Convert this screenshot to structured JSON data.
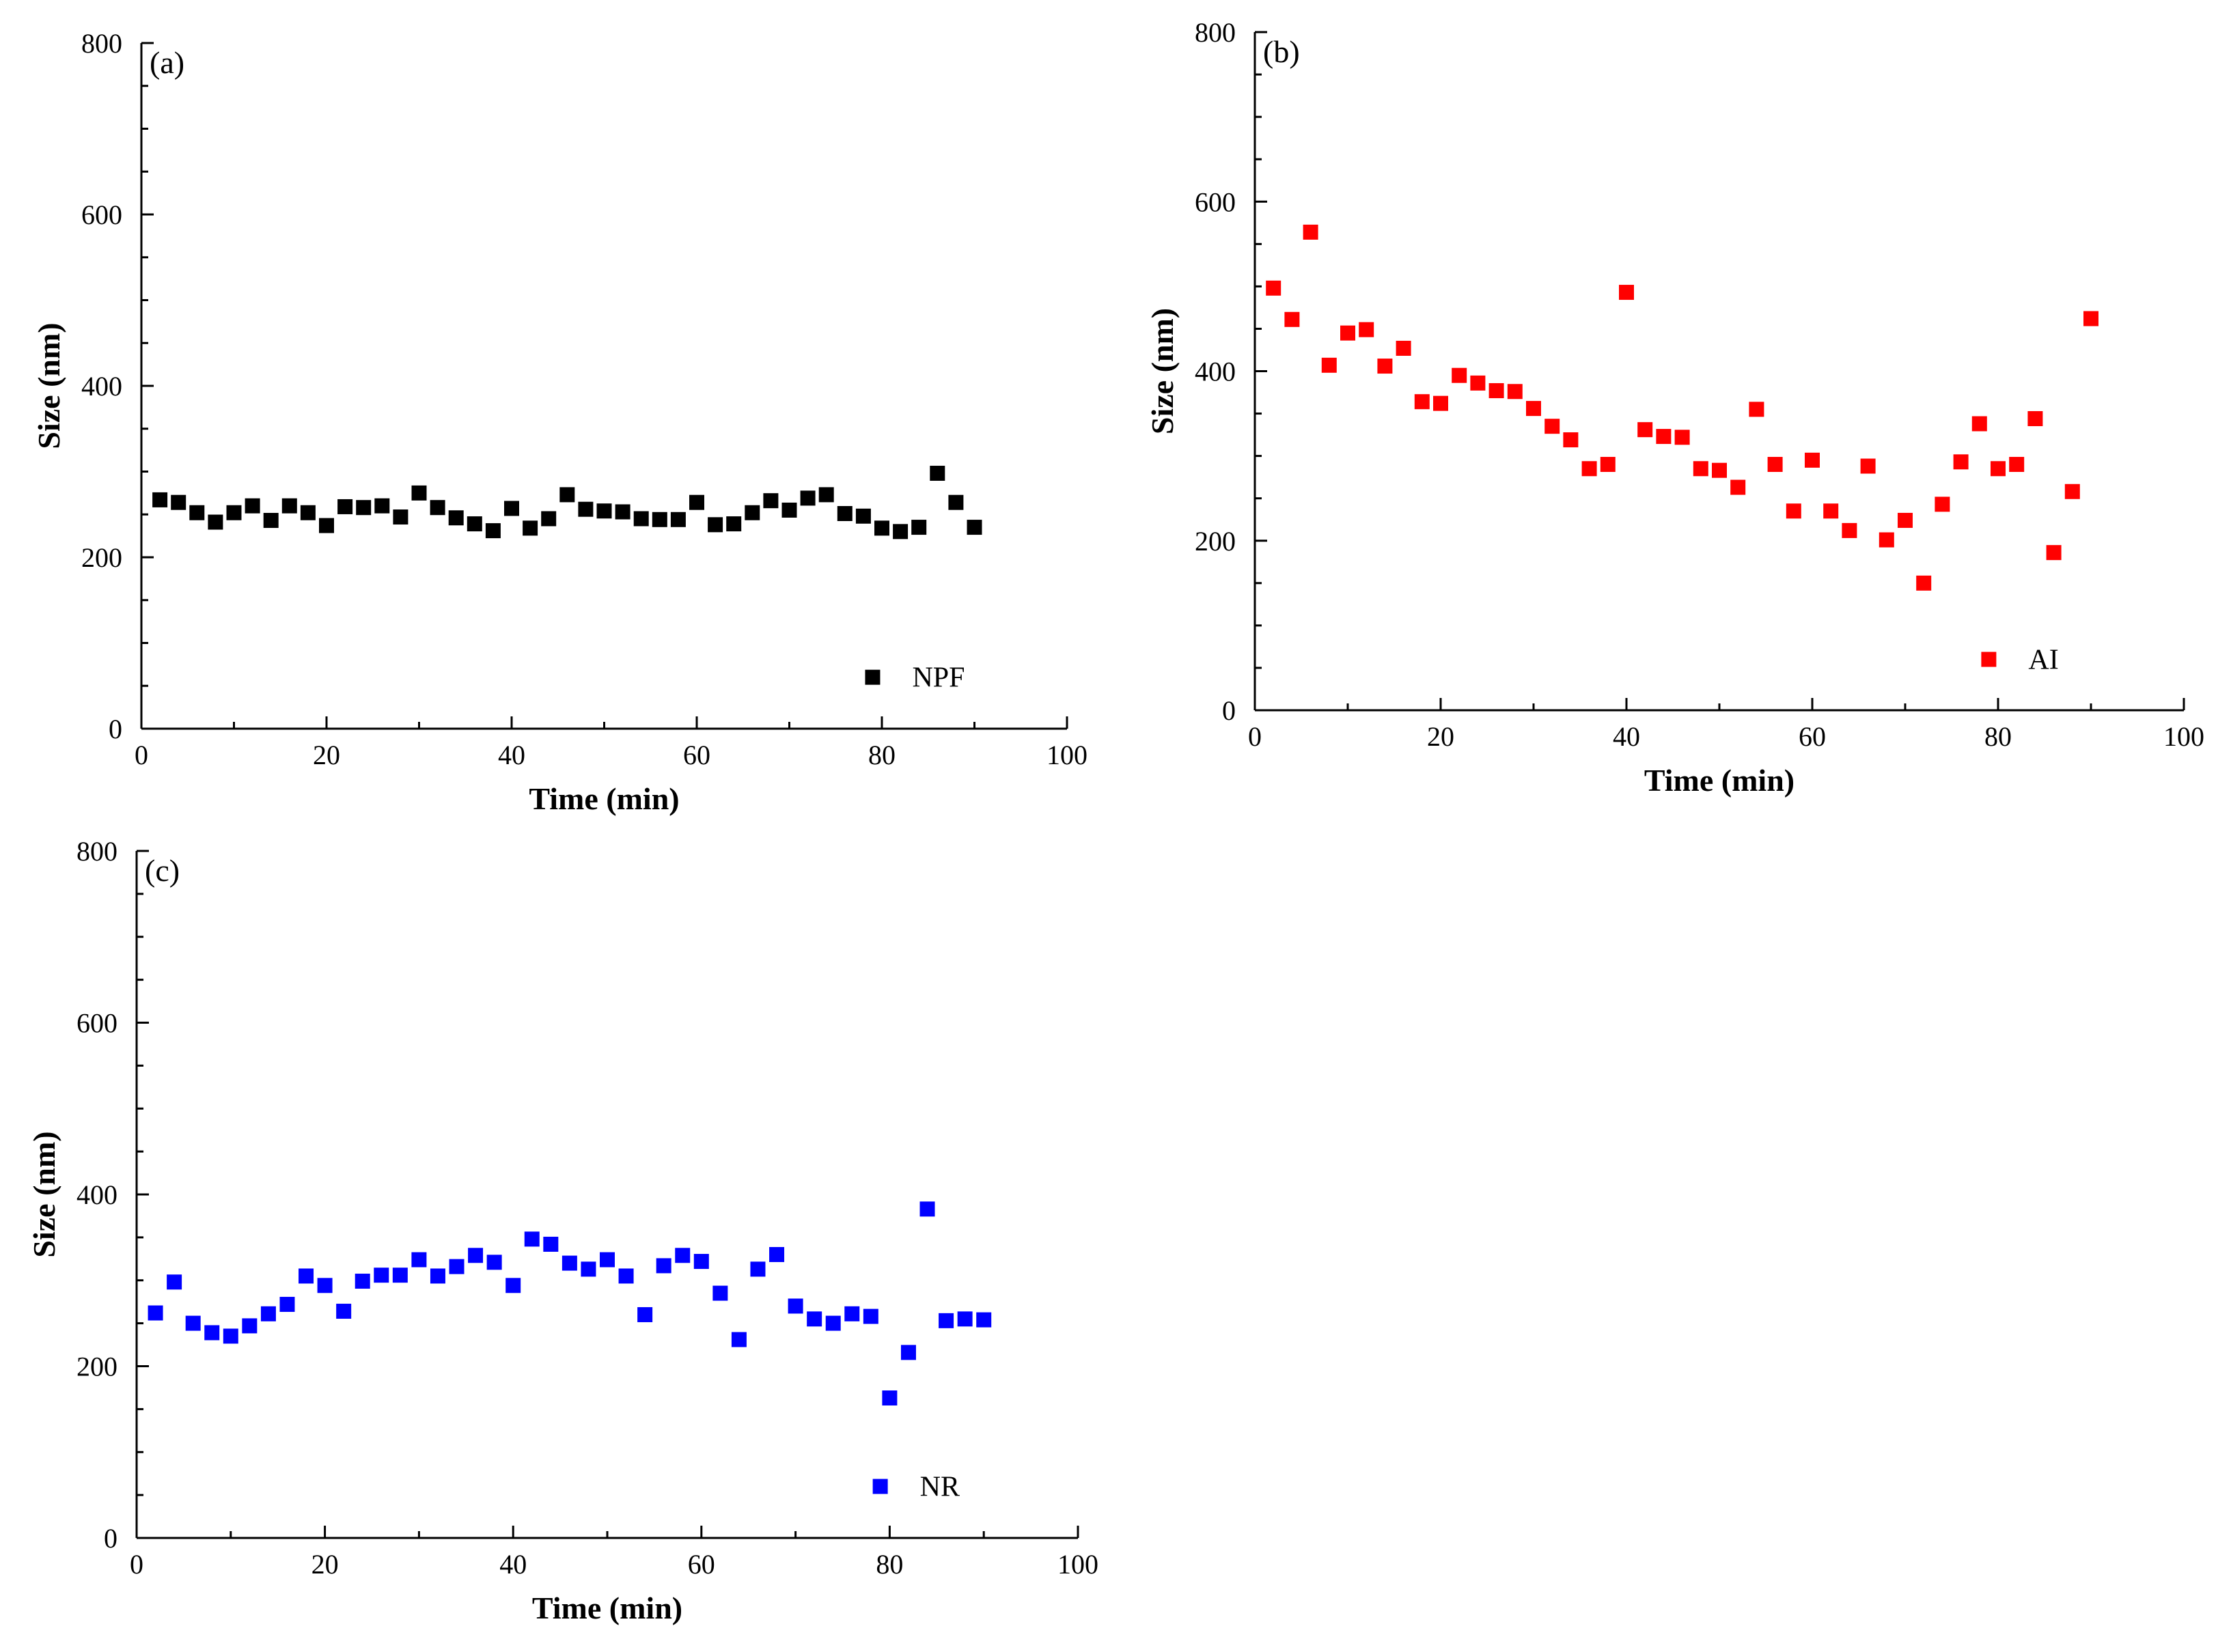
{
  "colors": {
    "NPF": "#000000",
    "AI": "#ff0000",
    "NR": "#0000ff"
  },
  "chart_data": [
    {
      "type": "scatter",
      "panel_label": "(a)",
      "xlabel": "Time (min)",
      "ylabel": "Size (nm)",
      "xlim": [
        0,
        100
      ],
      "ylim": [
        0,
        800
      ],
      "xticks": [
        "0",
        "20",
        "40",
        "60",
        "80",
        "100"
      ],
      "yticks": [
        "0",
        "200",
        "400",
        "600",
        "800"
      ],
      "legend": "bottom-right",
      "series": [
        {
          "name": "NPF",
          "x": [
            2,
            4,
            6,
            8,
            10,
            12,
            14,
            16,
            18,
            20,
            22,
            24,
            26,
            28,
            30,
            32,
            34,
            36,
            38,
            40,
            42,
            44,
            46,
            48,
            50,
            52,
            54,
            56,
            58,
            60,
            62,
            64,
            66,
            68,
            70,
            72,
            74,
            76,
            78,
            80,
            82,
            84,
            86,
            88,
            90
          ],
          "y": [
            267,
            264,
            252,
            241,
            252,
            260,
            243,
            260,
            252,
            237,
            259,
            258,
            260,
            247,
            275,
            258,
            246,
            239,
            231,
            257,
            234,
            245,
            273,
            256,
            254,
            253,
            245,
            244,
            244,
            264,
            238,
            239,
            252,
            266,
            255,
            269,
            273,
            251,
            248,
            234,
            230,
            235,
            298,
            264,
            235
          ]
        }
      ]
    },
    {
      "type": "scatter",
      "panel_label": "(b)",
      "xlabel": "Time (min)",
      "ylabel": "Size (nm)",
      "xlim": [
        0,
        100
      ],
      "ylim": [
        0,
        800
      ],
      "xticks": [
        "0",
        "20",
        "40",
        "60",
        "80",
        "100"
      ],
      "yticks": [
        "0",
        "200",
        "400",
        "600",
        "800"
      ],
      "legend": "bottom-right",
      "series": [
        {
          "name": "AI",
          "x": [
            2,
            4,
            6,
            8,
            10,
            12,
            14,
            16,
            18,
            20,
            22,
            24,
            26,
            28,
            30,
            32,
            34,
            36,
            38,
            40,
            42,
            44,
            46,
            48,
            50,
            52,
            54,
            56,
            58,
            60,
            62,
            64,
            66,
            68,
            70,
            72,
            74,
            76,
            78,
            80,
            82,
            84,
            86,
            88,
            90
          ],
          "y": [
            498,
            461,
            564,
            407,
            445,
            449,
            406,
            427,
            364,
            362,
            395,
            386,
            377,
            376,
            356,
            335,
            319,
            285,
            290,
            493,
            331,
            323,
            322,
            285,
            283,
            263,
            355,
            290,
            235,
            295,
            235,
            212,
            288,
            201,
            224,
            150,
            243,
            293,
            338,
            285,
            290,
            344,
            186,
            258,
            462
          ]
        }
      ]
    },
    {
      "type": "scatter",
      "panel_label": "(c)",
      "xlabel": "Time (min)",
      "ylabel": "Size (nm)",
      "xlim": [
        0,
        100
      ],
      "ylim": [
        0,
        800
      ],
      "xticks": [
        "0",
        "20",
        "40",
        "60",
        "80",
        "100"
      ],
      "yticks": [
        "0",
        "200",
        "400",
        "600",
        "800"
      ],
      "legend": "bottom-right",
      "series": [
        {
          "name": "NR",
          "x": [
            2,
            4,
            6,
            8,
            10,
            12,
            14,
            16,
            18,
            20,
            22,
            24,
            26,
            28,
            30,
            32,
            34,
            36,
            38,
            40,
            42,
            44,
            46,
            48,
            50,
            52,
            54,
            56,
            58,
            60,
            62,
            64,
            66,
            68,
            70,
            72,
            74,
            76,
            78,
            80,
            82,
            84,
            86,
            88,
            90
          ],
          "y": [
            262,
            298,
            250,
            239,
            235,
            247,
            261,
            272,
            305,
            294,
            264,
            299,
            306,
            306,
            324,
            305,
            316,
            329,
            321,
            294,
            348,
            342,
            320,
            313,
            324,
            305,
            260,
            317,
            329,
            322,
            285,
            231,
            313,
            330,
            270,
            255,
            250,
            261,
            258,
            163,
            216,
            383,
            253,
            255,
            254
          ]
        }
      ]
    }
  ]
}
